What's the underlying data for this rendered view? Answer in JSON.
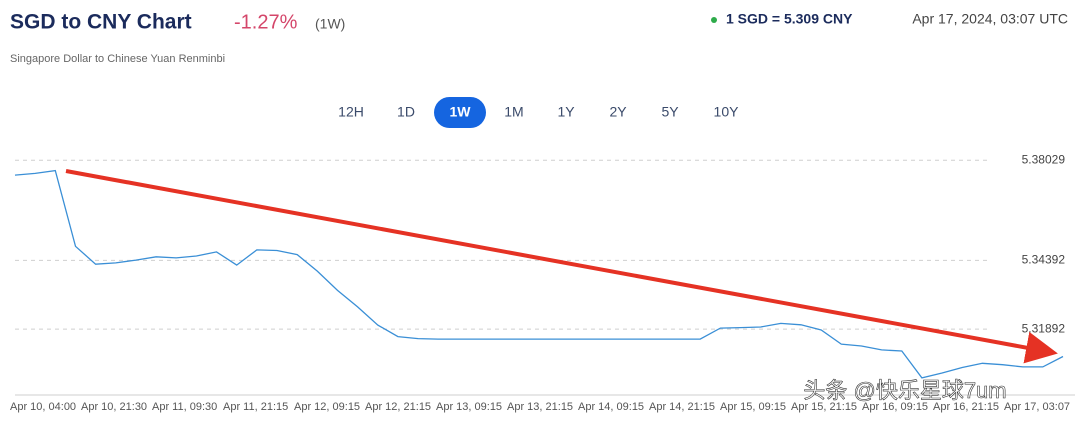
{
  "header": {
    "title": "SGD to CNY Chart",
    "change": "-1.27%",
    "period": "(1W)",
    "subtitle": "Singapore Dollar to Chinese Yuan Renminbi",
    "rate": "1 SGD = 5.309 CNY",
    "timestamp": "Apr 17, 2024, 03:07 UTC"
  },
  "range_buttons": {
    "items": [
      "12H",
      "1D",
      "1W",
      "1M",
      "1Y",
      "2Y",
      "5Y",
      "10Y"
    ],
    "active": "1W"
  },
  "watermark": "头条 @快乐星球7um",
  "chart_data": {
    "type": "line",
    "color": "#3a8fd6",
    "x_labels": [
      "Apr 10, 04:00",
      "Apr 10, 21:30",
      "Apr 11, 09:30",
      "Apr 11, 21:15",
      "Apr 12, 09:15",
      "Apr 12, 21:15",
      "Apr 13, 09:15",
      "Apr 13, 21:15",
      "Apr 14, 09:15",
      "Apr 14, 21:15",
      "Apr 15, 09:15",
      "Apr 15, 21:15",
      "Apr 16, 09:15",
      "Apr 16, 21:15",
      "Apr 17, 03:07"
    ],
    "values": [
      5.3749,
      5.3755,
      5.3765,
      5.349,
      5.3425,
      5.343,
      5.344,
      5.3452,
      5.3448,
      5.3455,
      5.347,
      5.3422,
      5.3477,
      5.3475,
      5.346,
      5.34,
      5.333,
      5.327,
      5.3204,
      5.3162,
      5.3155,
      5.3153,
      5.3153,
      5.3153,
      5.3153,
      5.3153,
      5.3153,
      5.3153,
      5.3153,
      5.3153,
      5.3153,
      5.3153,
      5.3153,
      5.3153,
      5.3153,
      5.3193,
      5.3195,
      5.3197,
      5.321,
      5.3205,
      5.3186,
      5.3135,
      5.3128,
      5.3114,
      5.311,
      5.3012,
      5.303,
      5.305,
      5.3065,
      5.306,
      5.3052,
      5.3052,
      5.309
    ],
    "ylim": [
      5.295,
      5.384
    ],
    "yticks": [
      5.31892,
      5.34392,
      5.38029
    ],
    "grid": true
  }
}
